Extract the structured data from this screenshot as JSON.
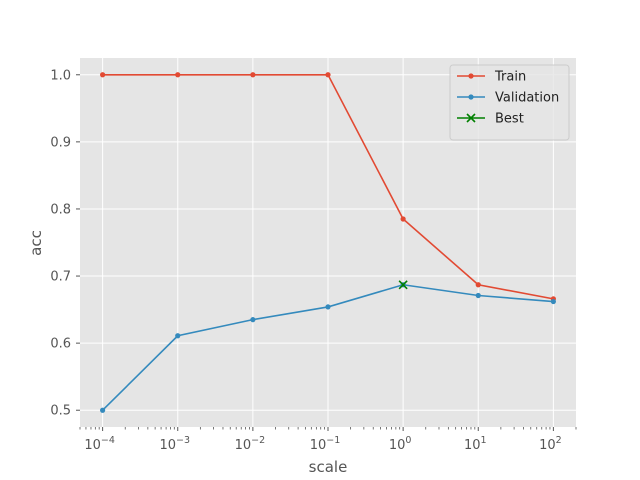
{
  "chart_data": {
    "type": "line",
    "xlabel": "scale",
    "ylabel": "acc",
    "x_scale": "log",
    "x": [
      0.0001,
      0.001,
      0.01,
      0.1,
      1,
      10,
      100
    ],
    "xlim": [
      5e-05,
      200
    ],
    "ylim": [
      0.475,
      1.025
    ],
    "x_ticks": [
      {
        "value": 0.0001,
        "exp": "−4"
      },
      {
        "value": 0.001,
        "exp": "−3"
      },
      {
        "value": 0.01,
        "exp": "−2"
      },
      {
        "value": 0.1,
        "exp": "−1"
      },
      {
        "value": 1,
        "exp": "0"
      },
      {
        "value": 10,
        "exp": "1"
      },
      {
        "value": 100,
        "exp": "2"
      }
    ],
    "x_tick_base": "10",
    "y_ticks": [
      "0.5",
      "0.6",
      "0.7",
      "0.8",
      "0.9",
      "1.0"
    ],
    "grid": true,
    "legend_position": "top-right",
    "series": [
      {
        "name": "Train",
        "color": "#E24A33",
        "marker": "dot",
        "values": [
          1.0,
          1.0,
          1.0,
          1.0,
          0.785,
          0.687,
          0.666
        ]
      },
      {
        "name": "Validation",
        "color": "#348ABD",
        "marker": "dot",
        "values": [
          0.5,
          0.611,
          0.635,
          0.654,
          0.687,
          0.671,
          0.662
        ]
      },
      {
        "name": "Best",
        "color": "#008000",
        "marker": "x",
        "points": [
          {
            "x": 1,
            "y": 0.687
          }
        ]
      }
    ]
  }
}
